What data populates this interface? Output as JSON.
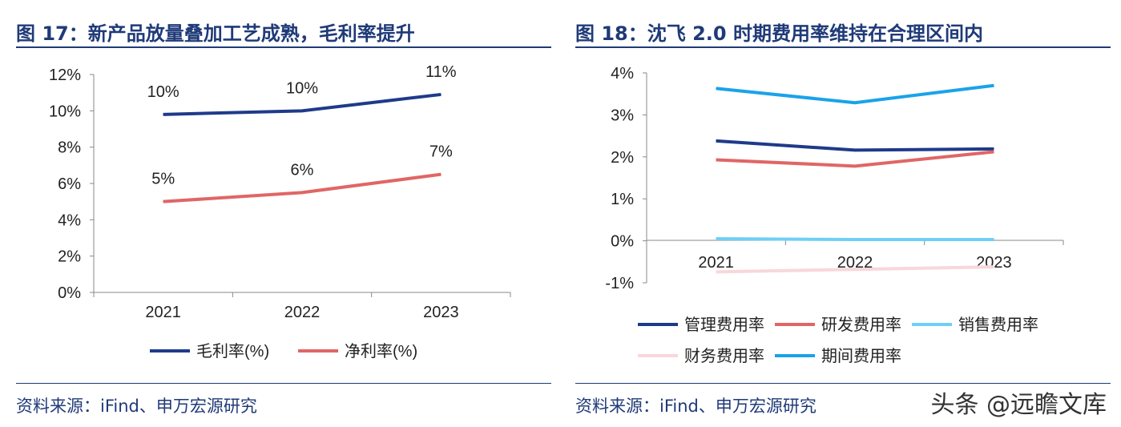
{
  "left": {
    "title": "图 17：新产品放量叠加工艺成熟，毛利率提升",
    "source": "资料来源：iFind、申万宏源研究"
  },
  "right": {
    "title": "图 18：沈飞 2.0 时期费用率维持在合理区间内",
    "source": "资料来源：iFind、申万宏源研究"
  },
  "watermark": "头条 @远瞻文库",
  "chart_data": [
    {
      "type": "line",
      "title": "图 17：新产品放量叠加工艺成熟，毛利率提升",
      "categories": [
        "2021",
        "2022",
        "2023"
      ],
      "ylim": [
        0,
        12
      ],
      "yticks": [
        "0%",
        "2%",
        "4%",
        "6%",
        "8%",
        "10%",
        "12%"
      ],
      "ytick_values": [
        0,
        2,
        4,
        6,
        8,
        10,
        12
      ],
      "grid": false,
      "legend_position": "bottom",
      "series": [
        {
          "name": "毛利率(%)",
          "color": "#1f3a8a",
          "values": [
            9.8,
            10.0,
            10.9
          ],
          "labels": [
            "10%",
            "10%",
            "11%"
          ]
        },
        {
          "name": "净利率(%)",
          "color": "#e06666",
          "values": [
            5.0,
            5.5,
            6.5
          ],
          "labels": [
            "5%",
            "6%",
            "7%"
          ]
        }
      ]
    },
    {
      "type": "line",
      "title": "图 18：沈飞 2.0 时期费用率维持在合理区间内",
      "categories": [
        "2021",
        "2022",
        "2023"
      ],
      "ylim": [
        -1,
        4
      ],
      "yticks": [
        "-1%",
        "0%",
        "1%",
        "2%",
        "3%",
        "4%"
      ],
      "ytick_values": [
        -1,
        0,
        1,
        2,
        3,
        4
      ],
      "grid": false,
      "legend_position": "bottom",
      "series": [
        {
          "name": "管理费用率",
          "color": "#1f3a8a",
          "values": [
            2.38,
            2.16,
            2.19
          ]
        },
        {
          "name": "研发费用率",
          "color": "#e06666",
          "values": [
            1.93,
            1.78,
            2.12
          ]
        },
        {
          "name": "销售费用率",
          "color": "#6fcff5",
          "values": [
            0.05,
            0.03,
            0.03
          ]
        },
        {
          "name": "财务费用率",
          "color": "#f8d7da",
          "values": [
            -0.74,
            -0.68,
            -0.62
          ]
        },
        {
          "name": "期间费用率",
          "color": "#1aa3e8",
          "values": [
            3.63,
            3.29,
            3.7
          ]
        }
      ]
    }
  ]
}
